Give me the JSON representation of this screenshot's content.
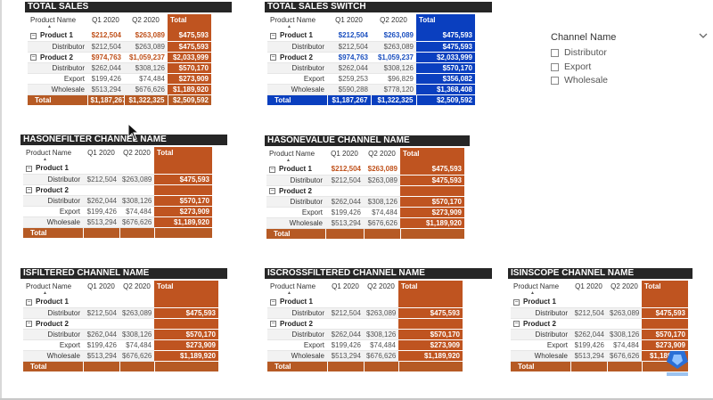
{
  "colors": {
    "title_bar": "#262626",
    "total_orange": "#c0521c",
    "total_orange_alt": "#b85a20",
    "total_blue": "#0a3fbf",
    "highlight_orange_text": "#c0521c",
    "highlight_blue_text": "#1a4fbf"
  },
  "columns": {
    "product": "Product Name",
    "q1": "Q1 2020",
    "q2": "Q2 2020",
    "total": "Total"
  },
  "expand_glyph": "⊟",
  "visuals": {
    "total_sales": {
      "title": "TOTAL SALES",
      "rows": [
        {
          "label": "Product 1",
          "q1": "$212,504",
          "q2": "$263,089",
          "total": "$475,593"
        },
        {
          "label": "Distributor",
          "q1": "$212,504",
          "q2": "$263,089",
          "total": "$475,593"
        },
        {
          "label": "Product 2",
          "q1": "$974,763",
          "q2": "$1,059,237",
          "total": "$2,033,999"
        },
        {
          "label": "Distributor",
          "q1": "$262,044",
          "q2": "$308,126",
          "total": "$570,170"
        },
        {
          "label": "Export",
          "q1": "$199,426",
          "q2": "$74,484",
          "total": "$273,909"
        },
        {
          "label": "Wholesale",
          "q1": "$513,294",
          "q2": "$676,626",
          "total": "$1,189,920"
        }
      ],
      "total_row": {
        "label": "Total",
        "q1": "$1,187,267",
        "q2": "$1,322,325",
        "total": "$2,509,592"
      }
    },
    "total_sales_switch": {
      "title": "TOTAL SALES SWITCH",
      "rows": [
        {
          "label": "Product 1",
          "q1": "$212,504",
          "q2": "$263,089",
          "total": "$475,593"
        },
        {
          "label": "Distributor",
          "q1": "$212,504",
          "q2": "$263,089",
          "total": "$475,593"
        },
        {
          "label": "Product 2",
          "q1": "$974,763",
          "q2": "$1,059,237",
          "total": "$2,033,999"
        },
        {
          "label": "Distributor",
          "q1": "$262,044",
          "q2": "$308,126",
          "total": "$570,170"
        },
        {
          "label": "Export",
          "q1": "$259,253",
          "q2": "$96,829",
          "total": "$356,082"
        },
        {
          "label": "Wholesale",
          "q1": "$590,288",
          "q2": "$778,120",
          "total": "$1,368,408"
        }
      ],
      "total_row": {
        "label": "Total",
        "q1": "$1,187,267",
        "q2": "$1,322,325",
        "total": "$2,509,592"
      }
    },
    "hasonefilter": {
      "title": "HASONEFILTER CHANNEL NAME",
      "rows": [
        {
          "label": "Product 1",
          "q1": "",
          "q2": "",
          "total": ""
        },
        {
          "label": "Distributor",
          "q1": "$212,504",
          "q2": "$263,089",
          "total": "$475,593"
        },
        {
          "label": "Product 2",
          "q1": "",
          "q2": "",
          "total": ""
        },
        {
          "label": "Distributor",
          "q1": "$262,044",
          "q2": "$308,126",
          "total": "$570,170"
        },
        {
          "label": "Export",
          "q1": "$199,426",
          "q2": "$74,484",
          "total": "$273,909"
        },
        {
          "label": "Wholesale",
          "q1": "$513,294",
          "q2": "$676,626",
          "total": "$1,189,920"
        }
      ],
      "total_row": {
        "label": "Total",
        "q1": "",
        "q2": "",
        "total": ""
      }
    },
    "hasonevalue": {
      "title": "HASONEVALUE CHANNEL NAME",
      "rows": [
        {
          "label": "Product 1",
          "q1": "$212,504",
          "q2": "$263,089",
          "total": "$475,593"
        },
        {
          "label": "Distributor",
          "q1": "$212,504",
          "q2": "$263,089",
          "total": "$475,593"
        },
        {
          "label": "Product 2",
          "q1": "",
          "q2": "",
          "total": ""
        },
        {
          "label": "Distributor",
          "q1": "$262,044",
          "q2": "$308,126",
          "total": "$570,170"
        },
        {
          "label": "Export",
          "q1": "$199,426",
          "q2": "$74,484",
          "total": "$273,909"
        },
        {
          "label": "Wholesale",
          "q1": "$513,294",
          "q2": "$676,626",
          "total": "$1,189,920"
        }
      ],
      "total_row": {
        "label": "Total",
        "q1": "",
        "q2": "",
        "total": ""
      }
    },
    "isfiltered": {
      "title": "ISFILTERED CHANNEL NAME",
      "rows": [
        {
          "label": "Product 1",
          "q1": "",
          "q2": "",
          "total": ""
        },
        {
          "label": "Distributor",
          "q1": "$212,504",
          "q2": "$263,089",
          "total": "$475,593"
        },
        {
          "label": "Product 2",
          "q1": "",
          "q2": "",
          "total": ""
        },
        {
          "label": "Distributor",
          "q1": "$262,044",
          "q2": "$308,126",
          "total": "$570,170"
        },
        {
          "label": "Export",
          "q1": "$199,426",
          "q2": "$74,484",
          "total": "$273,909"
        },
        {
          "label": "Wholesale",
          "q1": "$513,294",
          "q2": "$676,626",
          "total": "$1,189,920"
        }
      ],
      "total_row": {
        "label": "Total",
        "q1": "",
        "q2": "",
        "total": ""
      }
    },
    "iscrossfiltered": {
      "title": "ISCROSSFILTERED CHANNEL NAME",
      "rows": [
        {
          "label": "Product 1",
          "q1": "",
          "q2": "",
          "total": ""
        },
        {
          "label": "Distributor",
          "q1": "$212,504",
          "q2": "$263,089",
          "total": "$475,593"
        },
        {
          "label": "Product 2",
          "q1": "",
          "q2": "",
          "total": ""
        },
        {
          "label": "Distributor",
          "q1": "$262,044",
          "q2": "$308,126",
          "total": "$570,170"
        },
        {
          "label": "Export",
          "q1": "$199,426",
          "q2": "$74,484",
          "total": "$273,909"
        },
        {
          "label": "Wholesale",
          "q1": "$513,294",
          "q2": "$676,626",
          "total": "$1,189,920"
        }
      ],
      "total_row": {
        "label": "Total",
        "q1": "",
        "q2": "",
        "total": ""
      }
    },
    "isinscope": {
      "title": "ISINSCOPE CHANNEL NAME",
      "rows": [
        {
          "label": "Product 1",
          "q1": "",
          "q2": "",
          "total": ""
        },
        {
          "label": "Distributor",
          "q1": "$212,504",
          "q2": "$263,089",
          "total": "$475,593"
        },
        {
          "label": "Product 2",
          "q1": "",
          "q2": "",
          "total": ""
        },
        {
          "label": "Distributor",
          "q1": "$262,044",
          "q2": "$308,126",
          "total": "$570,170"
        },
        {
          "label": "Export",
          "q1": "$199,426",
          "q2": "$74,484",
          "total": "$273,909"
        },
        {
          "label": "Wholesale",
          "q1": "$513,294",
          "q2": "$676,626",
          "total": "$1,189,920"
        }
      ],
      "total_row": {
        "label": "Total",
        "q1": "",
        "q2": "",
        "total": ""
      }
    }
  },
  "slicer": {
    "title": "Channel Name",
    "options": [
      "Distributor",
      "Export",
      "Wholesale"
    ]
  },
  "icons": {
    "slicer_dropdown": "chevron-down-icon",
    "sort": "sort-ascending-icon",
    "expand": "collapse-box-icon"
  }
}
